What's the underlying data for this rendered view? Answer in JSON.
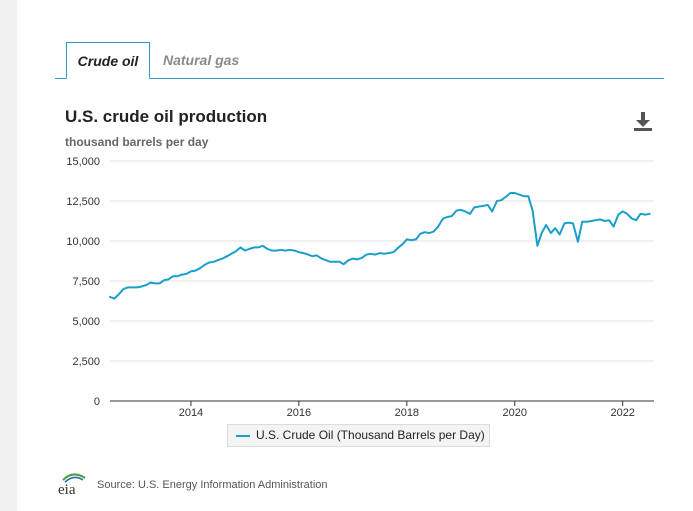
{
  "tabs": [
    {
      "label": "Crude oil",
      "active": true
    },
    {
      "label": "Natural gas",
      "active": false
    }
  ],
  "header": {
    "title": "U.S. crude oil production",
    "units": "thousand barrels per day"
  },
  "icons": {
    "download": "download-icon",
    "logo": "eia-logo"
  },
  "colors": {
    "line": "#1a9fc9",
    "accent": "#2a9fc4",
    "grid": "#e0e0e0"
  },
  "legend": {
    "label": "U.S. Crude Oil (Thousand Barrels per Day)"
  },
  "footer": {
    "logo_text": "eia",
    "source": "Source: U.S. Energy Information Administration"
  },
  "chart_data": {
    "type": "line",
    "title": "U.S. crude oil production",
    "ylabel": "thousand barrels per day",
    "xlabel": "",
    "xlim": [
      2012.5,
      2022.58
    ],
    "ylim": [
      0,
      15000
    ],
    "yticks": [
      0,
      2500,
      5000,
      7500,
      10000,
      12500,
      15000
    ],
    "ytick_labels": [
      "0",
      "2,500",
      "5,000",
      "7,500",
      "10,000",
      "12,500",
      "15,000"
    ],
    "xticks": [
      2014,
      2016,
      2018,
      2020,
      2022
    ],
    "xtick_labels": [
      "2014",
      "2016",
      "2018",
      "2020",
      "2022"
    ],
    "grid": true,
    "legend_position": "bottom-center",
    "series": [
      {
        "name": "U.S. Crude Oil (Thousand Barrels per Day)",
        "x": [
          2012.5,
          2012.58,
          2012.67,
          2012.75,
          2012.83,
          2012.92,
          2013.0,
          2013.08,
          2013.17,
          2013.25,
          2013.33,
          2013.42,
          2013.5,
          2013.58,
          2013.67,
          2013.75,
          2013.83,
          2013.92,
          2014.0,
          2014.08,
          2014.17,
          2014.25,
          2014.33,
          2014.42,
          2014.5,
          2014.58,
          2014.67,
          2014.75,
          2014.83,
          2014.92,
          2015.0,
          2015.08,
          2015.17,
          2015.25,
          2015.33,
          2015.42,
          2015.5,
          2015.58,
          2015.67,
          2015.75,
          2015.83,
          2015.92,
          2016.0,
          2016.08,
          2016.17,
          2016.25,
          2016.33,
          2016.42,
          2016.5,
          2016.58,
          2016.67,
          2016.75,
          2016.83,
          2016.92,
          2017.0,
          2017.08,
          2017.17,
          2017.25,
          2017.33,
          2017.42,
          2017.5,
          2017.58,
          2017.67,
          2017.75,
          2017.83,
          2017.92,
          2018.0,
          2018.08,
          2018.17,
          2018.25,
          2018.33,
          2018.42,
          2018.5,
          2018.58,
          2018.67,
          2018.75,
          2018.83,
          2018.92,
          2019.0,
          2019.08,
          2019.17,
          2019.25,
          2019.33,
          2019.42,
          2019.5,
          2019.58,
          2019.67,
          2019.75,
          2019.83,
          2019.92,
          2020.0,
          2020.08,
          2020.17,
          2020.25,
          2020.33,
          2020.42,
          2020.5,
          2020.58,
          2020.67,
          2020.75,
          2020.83,
          2020.92,
          2021.0,
          2021.08,
          2021.17,
          2021.25,
          2021.33,
          2021.42,
          2021.5,
          2021.58,
          2021.67,
          2021.75,
          2021.83,
          2021.92,
          2022.0,
          2022.08,
          2022.17,
          2022.25,
          2022.33,
          2022.42,
          2022.5
        ],
        "values": [
          6500,
          6400,
          6700,
          7000,
          7100,
          7100,
          7100,
          7150,
          7250,
          7400,
          7350,
          7350,
          7550,
          7600,
          7800,
          7800,
          7900,
          7950,
          8100,
          8150,
          8300,
          8500,
          8650,
          8700,
          8800,
          8900,
          9050,
          9200,
          9350,
          9600,
          9400,
          9500,
          9600,
          9600,
          9700,
          9500,
          9400,
          9400,
          9450,
          9400,
          9450,
          9400,
          9300,
          9250,
          9150,
          9050,
          9100,
          8900,
          8800,
          8700,
          8700,
          8700,
          8550,
          8800,
          8900,
          8850,
          8950,
          9150,
          9200,
          9150,
          9250,
          9200,
          9250,
          9300,
          9550,
          9800,
          10100,
          10050,
          10100,
          10450,
          10550,
          10500,
          10600,
          10900,
          11400,
          11500,
          11550,
          11900,
          11950,
          11850,
          11700,
          12100,
          12150,
          12200,
          12250,
          11850,
          12500,
          12550,
          12750,
          13000,
          13000,
          12900,
          12800,
          12800,
          11900,
          9700,
          10500,
          11000,
          10500,
          10800,
          10400,
          11100,
          11150,
          11100,
          9950,
          11200,
          11200,
          11250,
          11300,
          11350,
          11250,
          11300,
          10900,
          11650,
          11850,
          11700,
          11400,
          11300,
          11700,
          11650,
          11700
        ]
      }
    ]
  }
}
